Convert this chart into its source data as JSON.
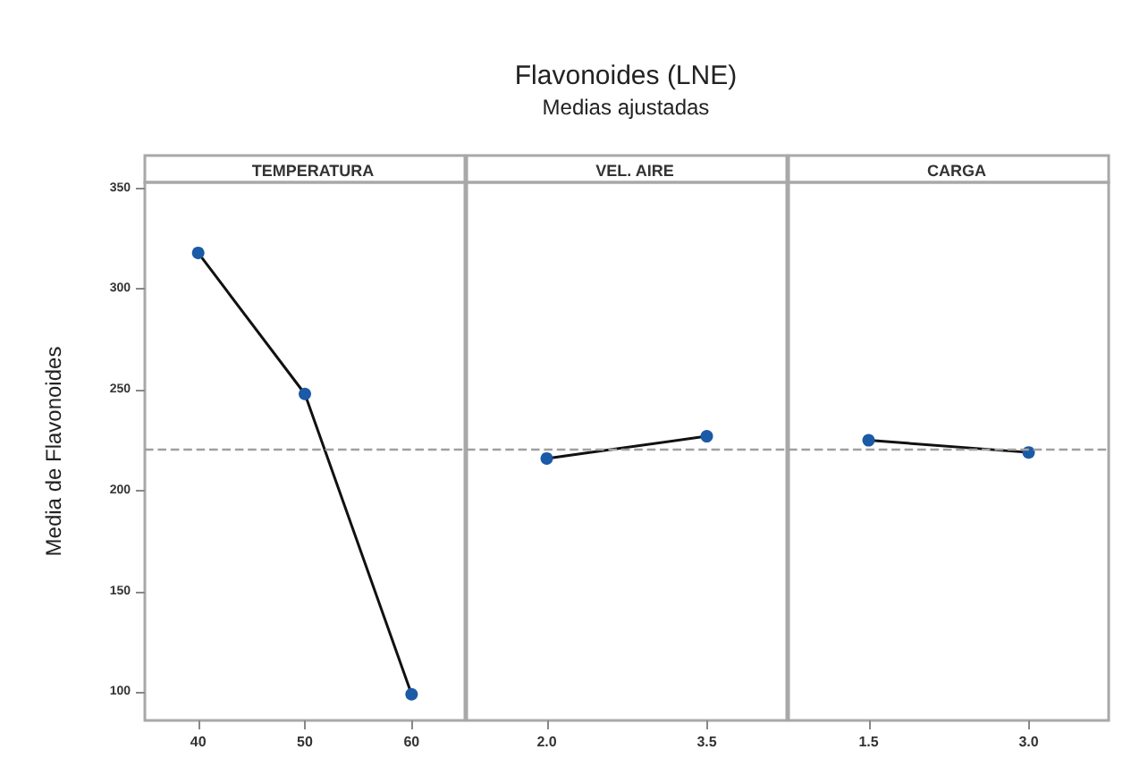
{
  "chart_data": [
    {
      "type": "line",
      "annotations": [
        "Flavonoides (LNE)",
        "Medias ajustadas"
      ],
      "xlabel": "TEMPERATURA",
      "ylabel": "Media de Flavonoides",
      "categories": [
        "40",
        "50",
        "60"
      ],
      "series": [
        {
          "color": "#1a5aa6",
          "values": [
            318,
            248,
            99
          ]
        }
      ],
      "ylim": [
        86,
        353
      ],
      "yticks": [
        100,
        150,
        200,
        250,
        300,
        350
      ],
      "marker": "circle",
      "grid": false,
      "ref_lines": [
        {
          "axis": "y",
          "value": 221,
          "color": "#a0a0a0",
          "line_style": "dashed"
        }
      ]
    },
    {
      "type": "line",
      "xlabel": "VEL. AIRE",
      "categories": [
        "2.0",
        "3.5"
      ],
      "series": [
        {
          "color": "#1a5aa6",
          "values": [
            216,
            227
          ]
        }
      ],
      "ylim": [
        86,
        353
      ],
      "yticks": [
        100,
        150,
        200,
        250,
        300,
        350
      ],
      "tick_labels": "x",
      "marker": "circle",
      "grid": false,
      "ref_lines": [
        {
          "axis": "y",
          "value": 221,
          "color": "#a0a0a0",
          "line_style": "dashed"
        }
      ]
    },
    {
      "type": "line",
      "xlabel": "CARGA",
      "categories": [
        "1.5",
        "3.0"
      ],
      "series": [
        {
          "color": "#1a5aa6",
          "values": [
            225,
            219
          ]
        }
      ],
      "ylim": [
        86,
        353
      ],
      "yticks": [
        100,
        150,
        200,
        250,
        300,
        350
      ],
      "tick_labels": "x",
      "marker": "circle",
      "grid": false,
      "ref_lines": [
        {
          "axis": "y",
          "value": 221,
          "color": "#a0a0a0",
          "line_style": "dashed"
        }
      ]
    }
  ]
}
